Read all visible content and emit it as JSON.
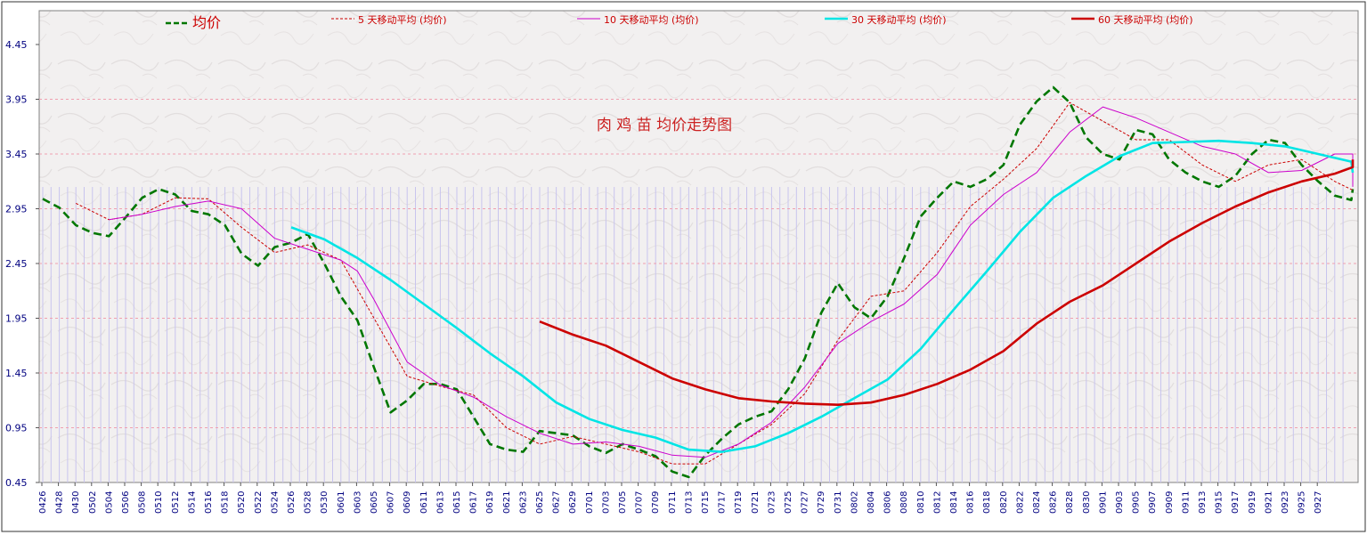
{
  "chart_data": {
    "type": "line",
    "title": "肉 鸡 苗 均价走势图",
    "xlabel": "",
    "ylabel": "",
    "ylim": [
      0.45,
      4.45
    ],
    "y_ticks": [
      "4.45",
      "3.95",
      "3.45",
      "2.95",
      "2.45",
      "1.95",
      "1.45",
      "0.95",
      "0.45"
    ],
    "y_tick_values": [
      4.45,
      3.95,
      3.45,
      2.95,
      2.45,
      1.95,
      1.45,
      0.95,
      0.45
    ],
    "x_ticks": [
      "0426",
      "0428",
      "0430",
      "0502",
      "0504",
      "0506",
      "0508",
      "0510",
      "0512",
      "0514",
      "0516",
      "0518",
      "0520",
      "0522",
      "0524",
      "0526",
      "0528",
      "0530",
      "0601",
      "0603",
      "0605",
      "0607",
      "0609",
      "0611",
      "0613",
      "0615",
      "0617",
      "0619",
      "0621",
      "0623",
      "0625",
      "0627",
      "0629",
      "0701",
      "0703",
      "0705",
      "0707",
      "0709",
      "0711",
      "0713",
      "0715",
      "0717",
      "0719",
      "0721",
      "0723",
      "0725",
      "0727",
      "0729",
      "0731",
      "0802",
      "0804",
      "0806",
      "0808",
      "0810",
      "0812",
      "0814",
      "0816",
      "0818",
      "0820",
      "0822",
      "0824",
      "0826",
      "0828",
      "0830",
      "0901",
      "0903",
      "0905",
      "0907",
      "0909",
      "0911",
      "0913",
      "0915",
      "0917",
      "0919",
      "0921",
      "0923",
      "0925",
      "0927"
    ],
    "grid": true,
    "legend_position": "top",
    "series": [
      {
        "name": "均价",
        "style": "dashed-thick",
        "color": "#007700",
        "points": [
          [
            0,
            3.04
          ],
          [
            1,
            2.96
          ],
          [
            2,
            2.8
          ],
          [
            3,
            2.73
          ],
          [
            4,
            2.7
          ],
          [
            5,
            2.87
          ],
          [
            6,
            3.05
          ],
          [
            7,
            3.13
          ],
          [
            8,
            3.08
          ],
          [
            9,
            2.93
          ],
          [
            10,
            2.9
          ],
          [
            11,
            2.8
          ],
          [
            12,
            2.54
          ],
          [
            13,
            2.43
          ],
          [
            14,
            2.6
          ],
          [
            15,
            2.64
          ],
          [
            16,
            2.72
          ],
          [
            17,
            2.45
          ],
          [
            18,
            2.15
          ],
          [
            19,
            1.93
          ],
          [
            20,
            1.5
          ],
          [
            21,
            1.09
          ],
          [
            22,
            1.2
          ],
          [
            23,
            1.35
          ],
          [
            24,
            1.35
          ],
          [
            25,
            1.3
          ],
          [
            26,
            1.05
          ],
          [
            27,
            0.8
          ],
          [
            28,
            0.75
          ],
          [
            29,
            0.73
          ],
          [
            30,
            0.92
          ],
          [
            31,
            0.9
          ],
          [
            32,
            0.88
          ],
          [
            33,
            0.78
          ],
          [
            34,
            0.72
          ],
          [
            35,
            0.8
          ],
          [
            36,
            0.75
          ],
          [
            37,
            0.69
          ],
          [
            38,
            0.55
          ],
          [
            39,
            0.5
          ],
          [
            40,
            0.7
          ],
          [
            41,
            0.85
          ],
          [
            42,
            0.98
          ],
          [
            43,
            1.05
          ],
          [
            44,
            1.1
          ],
          [
            45,
            1.3
          ],
          [
            46,
            1.58
          ],
          [
            47,
            2.0
          ],
          [
            48,
            2.27
          ],
          [
            49,
            2.05
          ],
          [
            50,
            1.95
          ],
          [
            51,
            2.15
          ],
          [
            52,
            2.5
          ],
          [
            53,
            2.88
          ],
          [
            54,
            3.05
          ],
          [
            55,
            3.2
          ],
          [
            56,
            3.15
          ],
          [
            57,
            3.22
          ],
          [
            58,
            3.35
          ],
          [
            59,
            3.72
          ],
          [
            60,
            3.93
          ],
          [
            61,
            4.06
          ],
          [
            62,
            3.92
          ],
          [
            63,
            3.6
          ],
          [
            64,
            3.45
          ],
          [
            65,
            3.4
          ],
          [
            66,
            3.67
          ],
          [
            67,
            3.63
          ],
          [
            68,
            3.4
          ],
          [
            69,
            3.28
          ],
          [
            70,
            3.2
          ],
          [
            71,
            3.15
          ],
          [
            72,
            3.25
          ],
          [
            73,
            3.45
          ],
          [
            74,
            3.58
          ],
          [
            75,
            3.55
          ],
          [
            76,
            3.35
          ],
          [
            77,
            3.2
          ],
          [
            78,
            3.07
          ],
          [
            79,
            3.03
          ],
          [
            80,
            3.13
          ]
        ]
      },
      {
        "name": "5 天移动平均 (均价)",
        "style": "dotted-thin",
        "color": "#cc0000",
        "points": [
          [
            2,
            3.0
          ],
          [
            4,
            2.85
          ],
          [
            6,
            2.9
          ],
          [
            8,
            3.05
          ],
          [
            10,
            3.04
          ],
          [
            12,
            2.78
          ],
          [
            14,
            2.55
          ],
          [
            16,
            2.62
          ],
          [
            18,
            2.48
          ],
          [
            20,
            1.95
          ],
          [
            22,
            1.42
          ],
          [
            24,
            1.33
          ],
          [
            26,
            1.25
          ],
          [
            28,
            0.95
          ],
          [
            30,
            0.8
          ],
          [
            32,
            0.87
          ],
          [
            34,
            0.8
          ],
          [
            36,
            0.73
          ],
          [
            38,
            0.62
          ],
          [
            40,
            0.62
          ],
          [
            42,
            0.8
          ],
          [
            44,
            0.98
          ],
          [
            46,
            1.26
          ],
          [
            48,
            1.75
          ],
          [
            50,
            2.15
          ],
          [
            52,
            2.2
          ],
          [
            54,
            2.55
          ],
          [
            56,
            2.97
          ],
          [
            58,
            3.22
          ],
          [
            60,
            3.5
          ],
          [
            62,
            3.92
          ],
          [
            64,
            3.75
          ],
          [
            66,
            3.58
          ],
          [
            68,
            3.58
          ],
          [
            70,
            3.35
          ],
          [
            72,
            3.2
          ],
          [
            74,
            3.35
          ],
          [
            76,
            3.4
          ],
          [
            78,
            3.2
          ],
          [
            80,
            3.12
          ],
          [
            82,
            3.13
          ]
        ]
      },
      {
        "name": "10 天移动平均 (均价)",
        "style": "solid-thin",
        "color": "#cc00cc",
        "points": [
          [
            4,
            2.85
          ],
          [
            6,
            2.9
          ],
          [
            8,
            2.97
          ],
          [
            10,
            3.02
          ],
          [
            12,
            2.95
          ],
          [
            14,
            2.68
          ],
          [
            16,
            2.58
          ],
          [
            18,
            2.48
          ],
          [
            19,
            2.38
          ],
          [
            20,
            2.12
          ],
          [
            22,
            1.55
          ],
          [
            24,
            1.34
          ],
          [
            26,
            1.23
          ],
          [
            28,
            1.05
          ],
          [
            30,
            0.9
          ],
          [
            32,
            0.8
          ],
          [
            34,
            0.82
          ],
          [
            36,
            0.78
          ],
          [
            38,
            0.7
          ],
          [
            40,
            0.68
          ],
          [
            42,
            0.8
          ],
          [
            44,
            1.0
          ],
          [
            46,
            1.32
          ],
          [
            48,
            1.72
          ],
          [
            50,
            1.92
          ],
          [
            52,
            2.08
          ],
          [
            54,
            2.35
          ],
          [
            56,
            2.8
          ],
          [
            58,
            3.08
          ],
          [
            60,
            3.28
          ],
          [
            62,
            3.65
          ],
          [
            64,
            3.88
          ],
          [
            66,
            3.78
          ],
          [
            68,
            3.65
          ],
          [
            70,
            3.52
          ],
          [
            72,
            3.45
          ],
          [
            74,
            3.28
          ],
          [
            76,
            3.3
          ],
          [
            78,
            3.45
          ],
          [
            80,
            3.45
          ],
          [
            82,
            3.22
          ],
          [
            84,
            3.15
          ]
        ]
      },
      {
        "name": "30 天移动平均 (均价)",
        "style": "solid-medium",
        "color": "#00e5e5",
        "points": [
          [
            15,
            2.78
          ],
          [
            17,
            2.67
          ],
          [
            19,
            2.5
          ],
          [
            21,
            2.3
          ],
          [
            23,
            2.08
          ],
          [
            25,
            1.86
          ],
          [
            27,
            1.63
          ],
          [
            29,
            1.42
          ],
          [
            31,
            1.18
          ],
          [
            33,
            1.03
          ],
          [
            35,
            0.93
          ],
          [
            37,
            0.86
          ],
          [
            39,
            0.75
          ],
          [
            41,
            0.73
          ],
          [
            43,
            0.78
          ],
          [
            45,
            0.9
          ],
          [
            47,
            1.05
          ],
          [
            49,
            1.22
          ],
          [
            51,
            1.39
          ],
          [
            53,
            1.67
          ],
          [
            55,
            2.03
          ],
          [
            57,
            2.38
          ],
          [
            59,
            2.74
          ],
          [
            61,
            3.05
          ],
          [
            63,
            3.25
          ],
          [
            65,
            3.43
          ],
          [
            67,
            3.55
          ],
          [
            69,
            3.56
          ],
          [
            71,
            3.57
          ],
          [
            73,
            3.55
          ],
          [
            75,
            3.52
          ],
          [
            77,
            3.45
          ],
          [
            79,
            3.38
          ],
          [
            81,
            3.28
          ]
        ]
      },
      {
        "name": "60 天移动平均 (均价)",
        "style": "solid-thick",
        "color": "#cc0000",
        "points": [
          [
            30,
            1.92
          ],
          [
            32,
            1.8
          ],
          [
            34,
            1.7
          ],
          [
            36,
            1.55
          ],
          [
            38,
            1.4
          ],
          [
            40,
            1.3
          ],
          [
            42,
            1.22
          ],
          [
            44,
            1.19
          ],
          [
            46,
            1.17
          ],
          [
            48,
            1.16
          ],
          [
            50,
            1.18
          ],
          [
            52,
            1.25
          ],
          [
            54,
            1.35
          ],
          [
            56,
            1.48
          ],
          [
            58,
            1.65
          ],
          [
            60,
            1.9
          ],
          [
            62,
            2.1
          ],
          [
            64,
            2.25
          ],
          [
            66,
            2.45
          ],
          [
            68,
            2.65
          ],
          [
            70,
            2.82
          ],
          [
            72,
            2.97
          ],
          [
            74,
            3.1
          ],
          [
            76,
            3.2
          ],
          [
            78,
            3.27
          ],
          [
            80,
            3.33
          ],
          [
            82,
            3.4
          ]
        ]
      }
    ]
  }
}
